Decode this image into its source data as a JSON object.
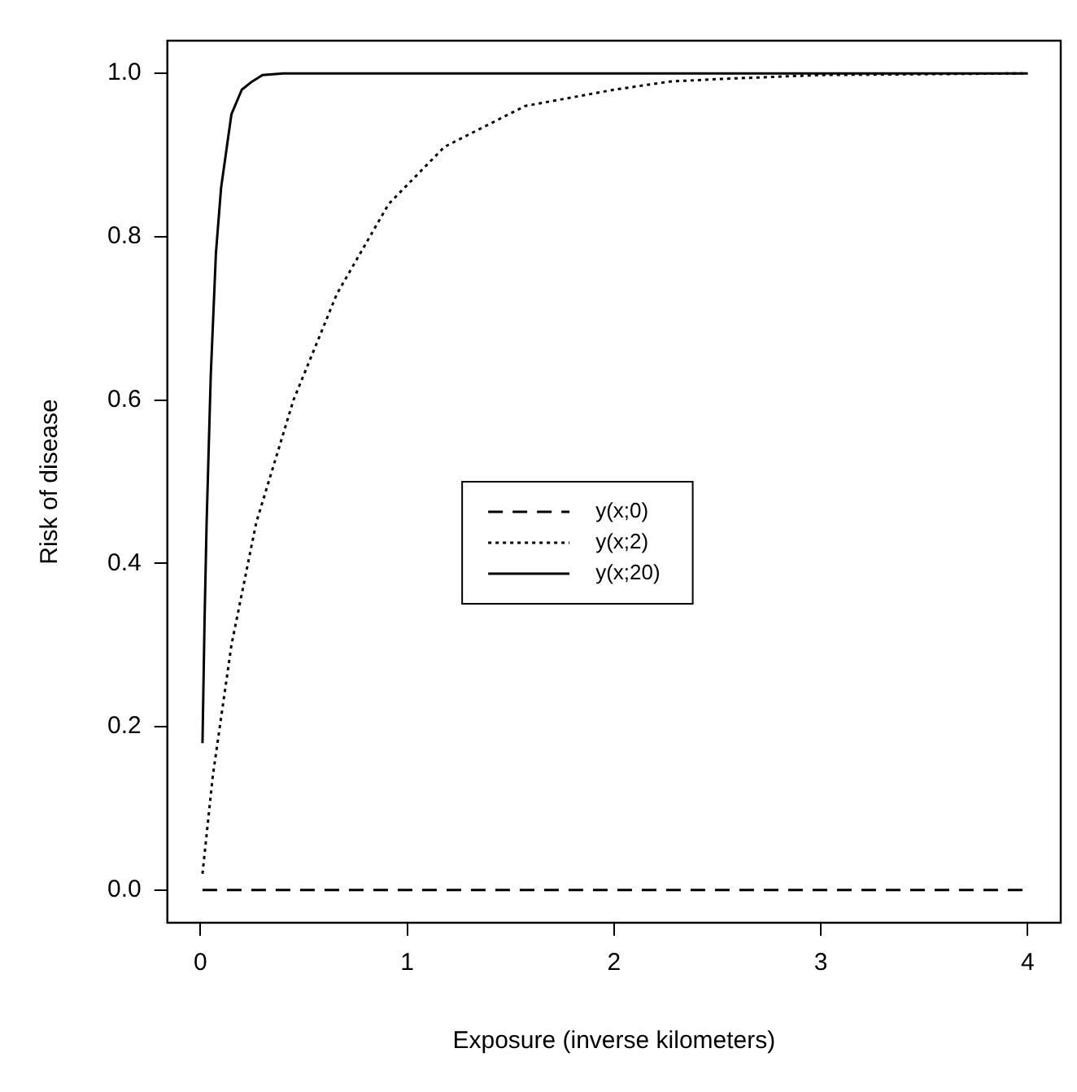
{
  "chart_data": {
    "type": "line",
    "xlabel": "Exposure (inverse kilometers)",
    "ylabel": "Risk of disease",
    "xlim": [
      -0.16,
      4.16
    ],
    "ylim": [
      -0.04,
      1.04
    ],
    "xticks": [
      0,
      1,
      2,
      3,
      4
    ],
    "yticks": [
      {
        "value": 0,
        "label": "0.0"
      },
      0.2,
      0.4,
      0.6,
      0.8,
      {
        "value": 1,
        "label": "1.0"
      }
    ],
    "grid": false,
    "legend": "center",
    "marker": "none",
    "series": [
      {
        "name": "y(x;0)",
        "color": "#000000",
        "line_style": "dashed",
        "x": [
          0.01,
          1,
          2,
          3,
          4
        ],
        "values": [
          0,
          0,
          0,
          0,
          0
        ]
      },
      {
        "name": "y(x;2)",
        "color": "#000000",
        "line_style": "dotted",
        "x": [
          0.01,
          0.06,
          0.15,
          0.27,
          0.45,
          0.66,
          0.91,
          1.18,
          1.57,
          2,
          2.27,
          2.5,
          3,
          3.5,
          4
        ],
        "values": [
          0.02,
          0.14,
          0.3,
          0.45,
          0.6,
          0.73,
          0.84,
          0.91,
          0.96,
          0.98,
          0.99,
          0.993,
          0.998,
          0.999,
          1
        ]
      },
      {
        "name": "y(x;20)",
        "color": "#000000",
        "line_style": "solid",
        "x": [
          0.01,
          0.02,
          0.03,
          0.05,
          0.075,
          0.1,
          0.15,
          0.2,
          0.25,
          0.3,
          0.4,
          1,
          2,
          3,
          4
        ],
        "values": [
          0.18,
          0.33,
          0.45,
          0.63,
          0.78,
          0.86,
          0.95,
          0.98,
          0.99,
          0.998,
          1,
          1,
          1,
          1,
          1
        ]
      }
    ]
  }
}
